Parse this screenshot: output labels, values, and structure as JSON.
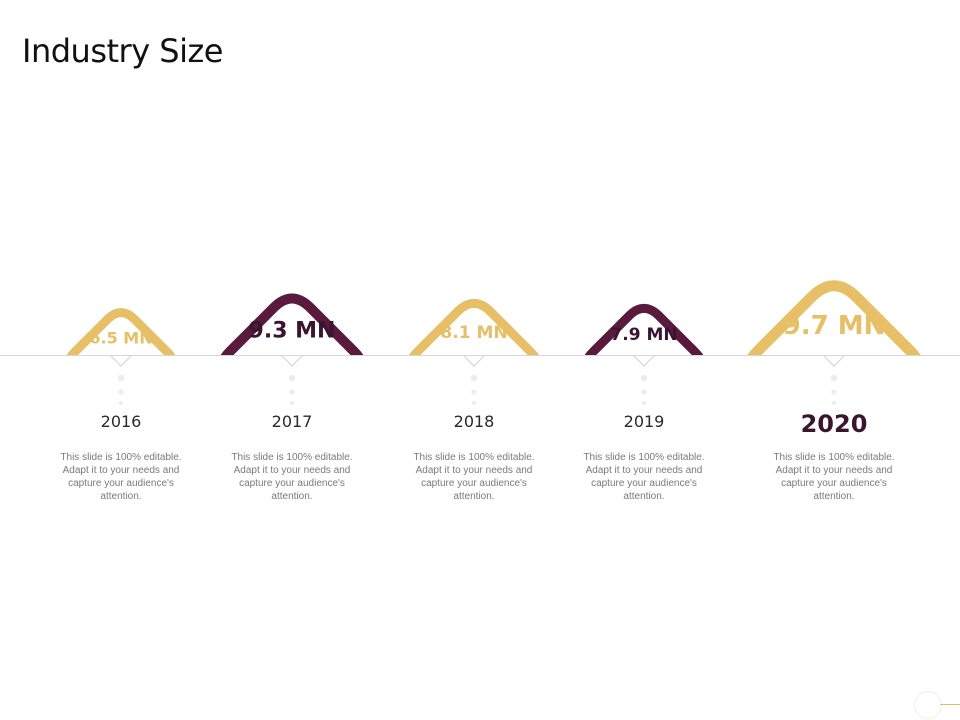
{
  "slide": {
    "title": "Industry Size"
  },
  "colors": {
    "gold": "#e6bf66",
    "plum": "#5a1a3e",
    "line": "#d6d6d6",
    "dots": "#ececec"
  },
  "items": [
    {
      "value": "6.5 MN",
      "year": "2016",
      "color": "gold",
      "description": "This slide is 100% editable. Adapt it to your needs and capture your audience's attention."
    },
    {
      "value": "9.3 MN",
      "year": "2017",
      "color": "plum",
      "description": "This slide is 100% editable. Adapt it to your needs and capture your audience's attention."
    },
    {
      "value": "8.1 MN",
      "year": "2018",
      "color": "gold",
      "description": "This slide is 100% editable. Adapt it to your needs and capture your audience's attention."
    },
    {
      "value": "7.9 MN",
      "year": "2019",
      "color": "plum",
      "description": "This slide is 100% editable. Adapt it to your needs and capture your audience's attention."
    },
    {
      "value": "9.7 MN",
      "year": "2020",
      "color": "gold",
      "description": "This slide is 100% editable. Adapt it to your needs and capture your audience's attention."
    }
  ]
}
